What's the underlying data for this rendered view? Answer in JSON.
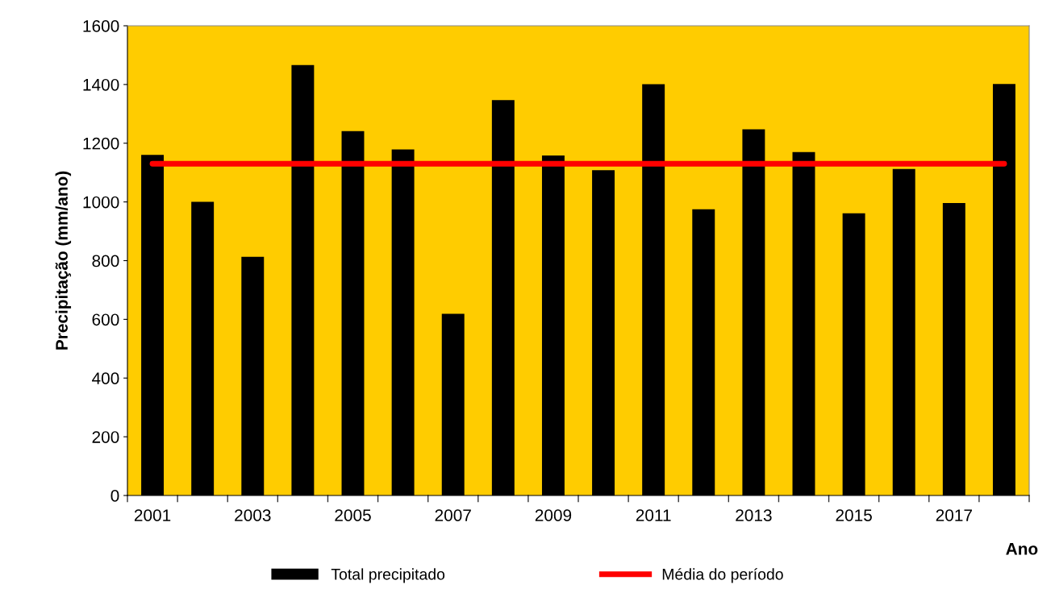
{
  "chart_data": {
    "type": "bar",
    "xlabel": "Ano",
    "ylabel": "Precipitação (mm/ano)",
    "categories": [
      "2001",
      null,
      "2003",
      null,
      "2005",
      null,
      "2007",
      null,
      "2009",
      null,
      "2011",
      null,
      "2013",
      null,
      "2015",
      null,
      "2017",
      null
    ],
    "series": [
      {
        "name": "Total precipitado",
        "color": "#000000",
        "values": [
          1160,
          1000,
          813,
          1466,
          1241,
          1179,
          619,
          1347,
          1158,
          1108,
          1401,
          975,
          1247,
          1170,
          961,
          1112,
          996,
          1402
        ]
      },
      {
        "name": "Média do período",
        "type": "line",
        "color": "#ff0000",
        "values": [
          1130,
          1130,
          1130,
          1130,
          1130,
          1130,
          1130,
          1130,
          1130,
          1130,
          1130,
          1130,
          1130,
          1130,
          1130,
          1130,
          1130,
          1130
        ]
      }
    ],
    "ylim": [
      0,
      1600
    ],
    "yticks": [
      0,
      200,
      400,
      600,
      800,
      1000,
      1200,
      1400,
      1600
    ],
    "grid": false,
    "legend": "bottom"
  }
}
